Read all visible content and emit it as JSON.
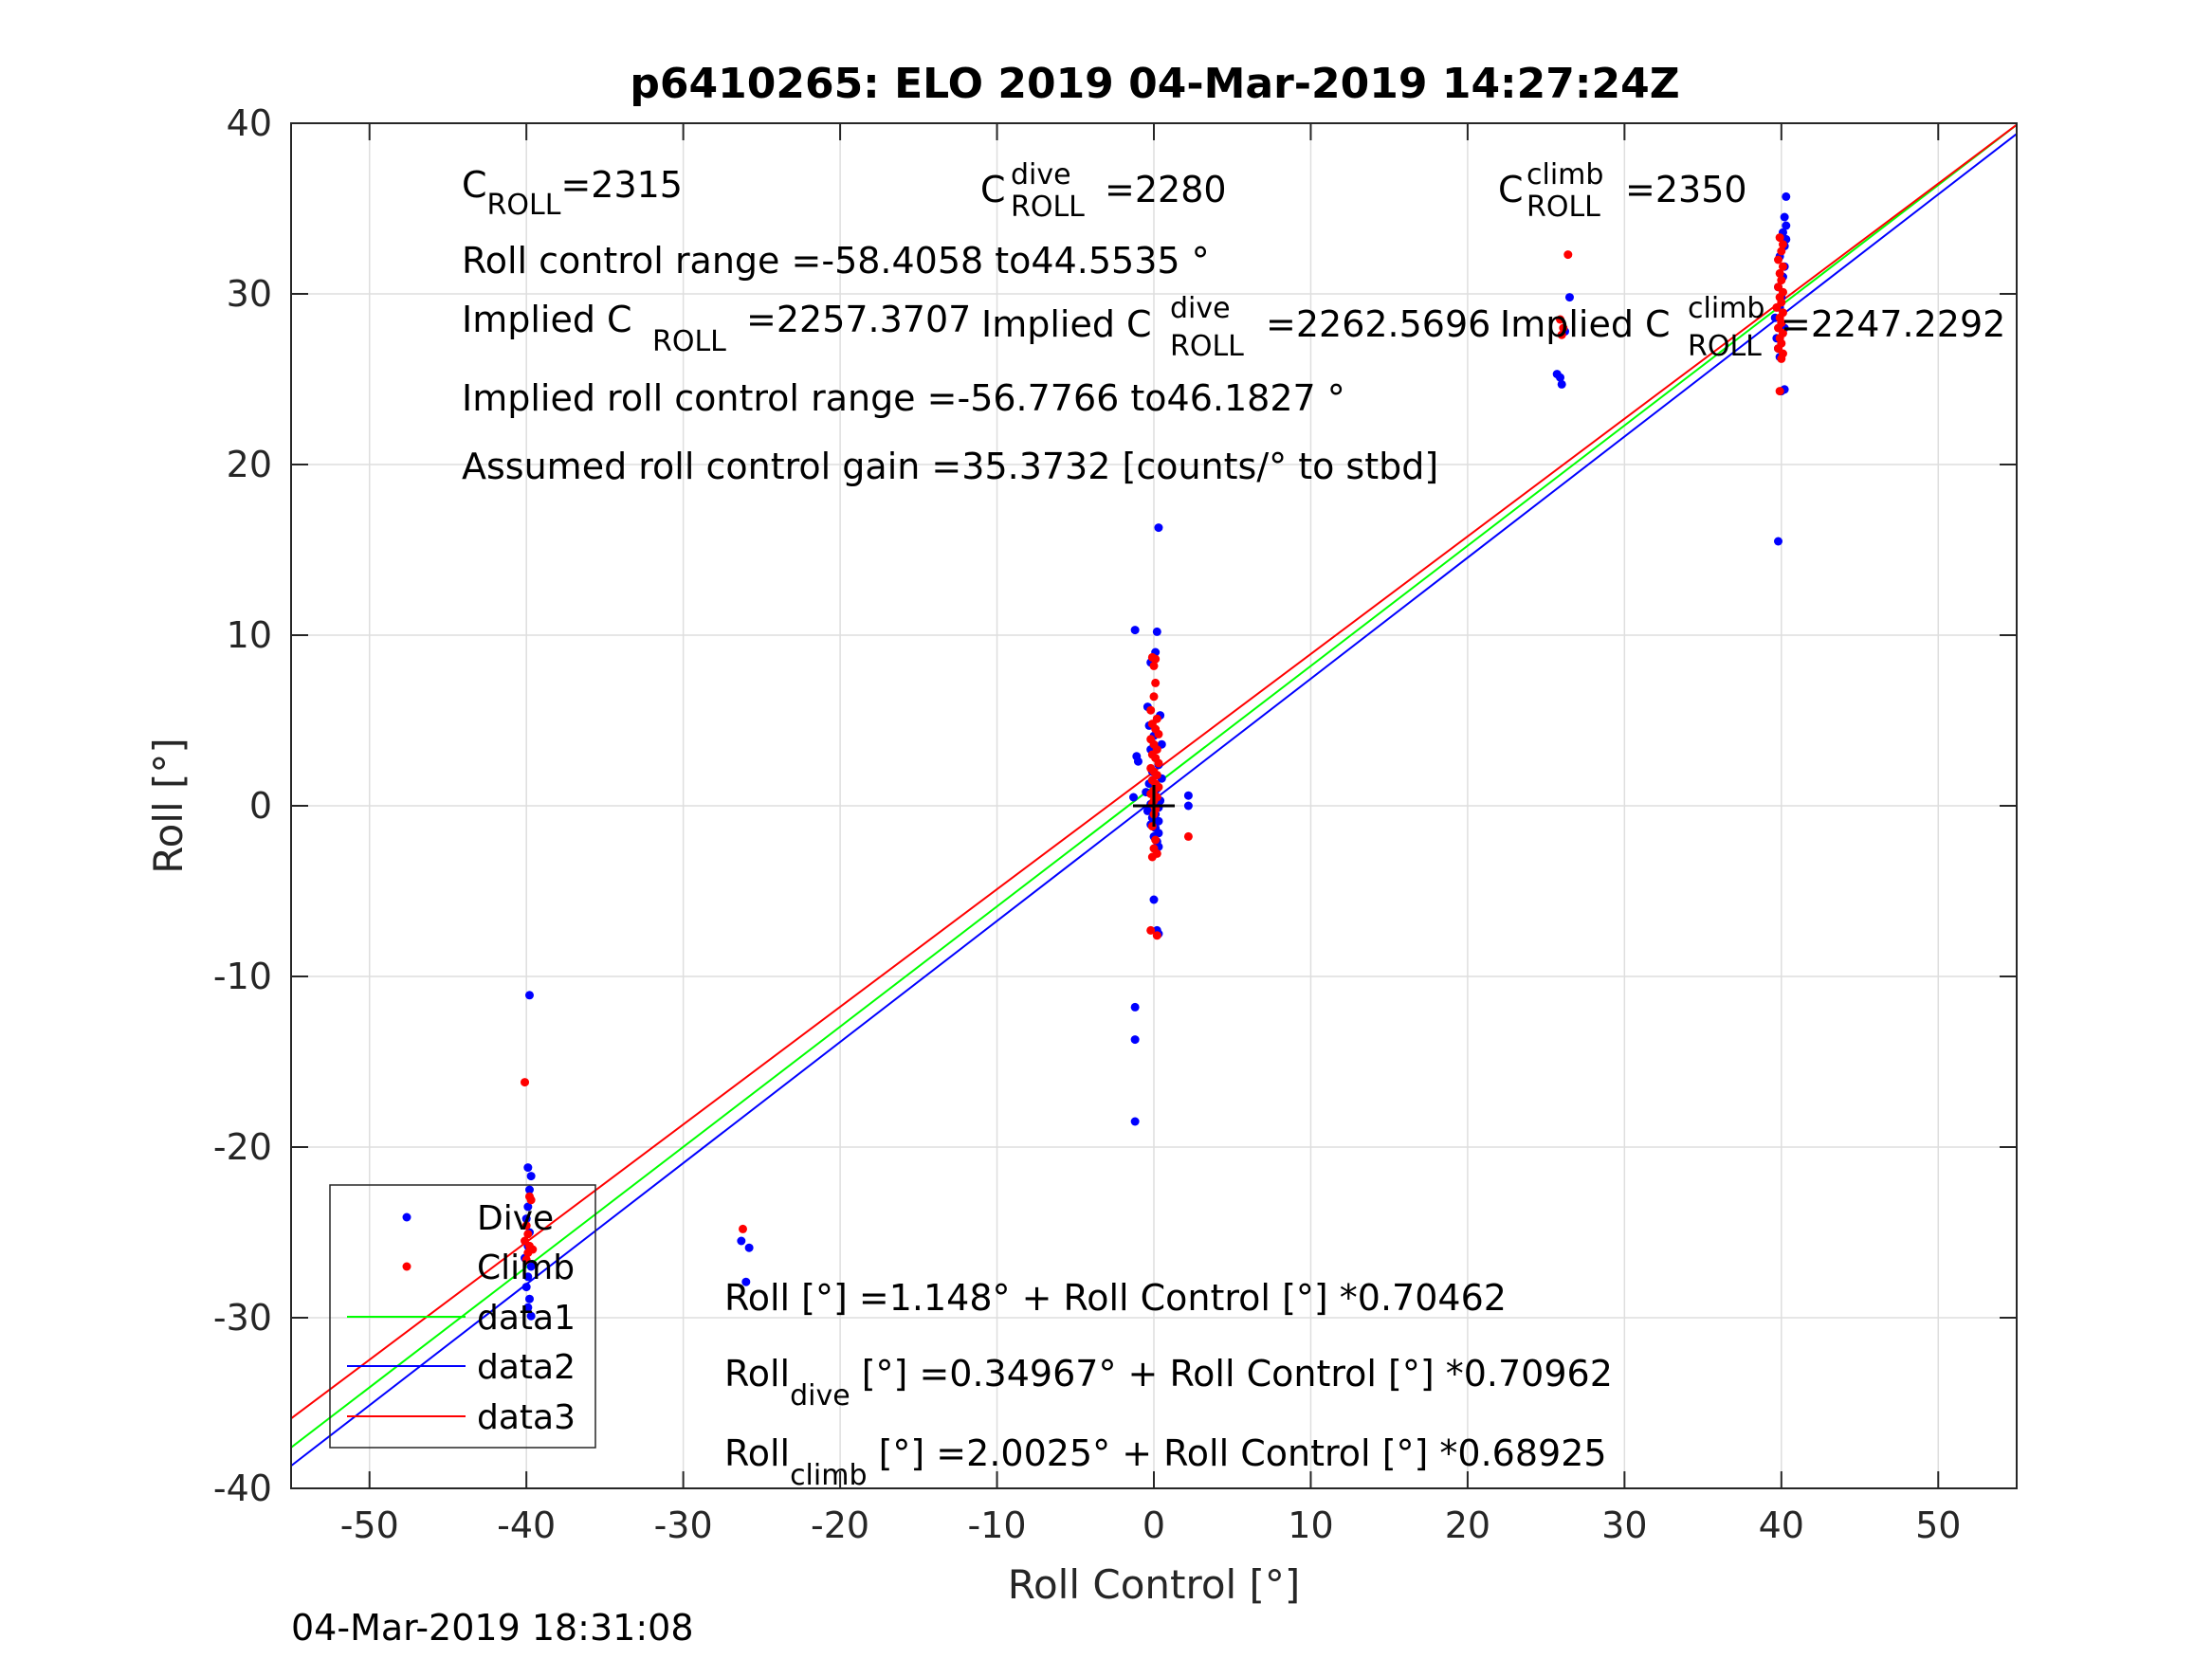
{
  "chart_data": {
    "type": "scatter",
    "title": "p6410265: ELO 2019 04-Mar-2019 14:27:24Z",
    "xlabel": "Roll Control [°]",
    "ylabel": "Roll [°]",
    "xlim": [
      -55,
      55
    ],
    "ylim": [
      -40,
      40
    ],
    "grid": true,
    "legend_position": "bottom-left",
    "xticks": [
      "-50",
      "-40",
      "-30",
      "-20",
      "-10",
      "0",
      "10",
      "20",
      "30",
      "40",
      "50"
    ],
    "yticks": [
      "-40",
      "-30",
      "-20",
      "-10",
      "0",
      "10",
      "20",
      "30",
      "40"
    ],
    "timestamp": "04-Mar-2019 18:31:08",
    "series": [
      {
        "name": "Dive",
        "kind": "points",
        "color": "#0000ff",
        "points": [
          [
            -39.8,
            -11.1
          ],
          [
            -39.9,
            -21.2
          ],
          [
            -39.7,
            -21.7
          ],
          [
            -39.8,
            -22.5
          ],
          [
            -39.9,
            -23.5
          ],
          [
            -40.0,
            -24.2
          ],
          [
            -39.8,
            -25.0
          ],
          [
            -39.9,
            -25.8
          ],
          [
            -40.1,
            -26.5
          ],
          [
            -39.7,
            -27.0
          ],
          [
            -39.9,
            -27.6
          ],
          [
            -40.0,
            -28.2
          ],
          [
            -39.8,
            -28.9
          ],
          [
            -39.9,
            -29.4
          ],
          [
            -39.7,
            -29.9
          ],
          [
            -26.3,
            -25.5
          ],
          [
            -25.8,
            -25.9
          ],
          [
            -26.0,
            -27.9
          ],
          [
            -1.2,
            10.3
          ],
          [
            0.2,
            10.2
          ],
          [
            0.3,
            16.3
          ],
          [
            0.1,
            9.0
          ],
          [
            -0.2,
            8.4
          ],
          [
            -0.4,
            5.8
          ],
          [
            0.4,
            5.3
          ],
          [
            -0.3,
            4.7
          ],
          [
            0.0,
            4.1
          ],
          [
            0.5,
            3.6
          ],
          [
            -0.2,
            3.3
          ],
          [
            -1.1,
            2.9
          ],
          [
            -1.0,
            2.6
          ],
          [
            0.3,
            2.4
          ],
          [
            -0.1,
            2.0
          ],
          [
            0.5,
            1.6
          ],
          [
            -0.3,
            1.3
          ],
          [
            0.2,
            1.0
          ],
          [
            -0.5,
            0.8
          ],
          [
            0.1,
            0.6
          ],
          [
            -1.3,
            0.5
          ],
          [
            0.4,
            0.3
          ],
          [
            -0.2,
            0.1
          ],
          [
            0.3,
            -0.1
          ],
          [
            -0.4,
            -0.3
          ],
          [
            0.1,
            -0.5
          ],
          [
            -0.1,
            -0.7
          ],
          [
            0.3,
            -0.9
          ],
          [
            -0.2,
            -1.1
          ],
          [
            0.1,
            -1.3
          ],
          [
            0.3,
            -1.6
          ],
          [
            0.0,
            -1.8
          ],
          [
            0.2,
            -2.1
          ],
          [
            0.3,
            -2.4
          ],
          [
            2.2,
            0.6
          ],
          [
            2.2,
            0.0
          ],
          [
            0.0,
            -5.5
          ],
          [
            0.2,
            -7.3
          ],
          [
            0.3,
            -7.5
          ],
          [
            -1.2,
            -11.8
          ],
          [
            -1.2,
            -13.7
          ],
          [
            -1.2,
            -18.5
          ],
          [
            25.7,
            25.3
          ],
          [
            25.9,
            25.1
          ],
          [
            26.0,
            24.7
          ],
          [
            26.5,
            29.8
          ],
          [
            26.2,
            27.8
          ],
          [
            40.3,
            35.7
          ],
          [
            40.2,
            34.5
          ],
          [
            40.3,
            34.0
          ],
          [
            40.1,
            33.6
          ],
          [
            40.3,
            33.2
          ],
          [
            40.2,
            32.8
          ],
          [
            39.9,
            32.2
          ],
          [
            40.2,
            31.6
          ],
          [
            40.1,
            31.0
          ],
          [
            39.8,
            30.4
          ],
          [
            40.0,
            29.8
          ],
          [
            39.9,
            29.2
          ],
          [
            39.6,
            28.6
          ],
          [
            40.2,
            28.0
          ],
          [
            39.7,
            27.4
          ],
          [
            39.8,
            26.8
          ],
          [
            39.9,
            26.3
          ],
          [
            40.2,
            24.4
          ],
          [
            40.0,
            24.3
          ],
          [
            39.8,
            15.5
          ]
        ]
      },
      {
        "name": "Climb",
        "kind": "points",
        "color": "#ff0000",
        "points": [
          [
            -40.1,
            -16.2
          ],
          [
            -39.8,
            -22.9
          ],
          [
            -39.7,
            -23.1
          ],
          [
            -40.0,
            -24.6
          ],
          [
            -39.9,
            -25.1
          ],
          [
            -40.1,
            -25.5
          ],
          [
            -39.8,
            -25.8
          ],
          [
            -39.6,
            -26.0
          ],
          [
            -39.9,
            -26.2
          ],
          [
            -40.0,
            -26.6
          ],
          [
            -26.2,
            -24.8
          ],
          [
            -0.1,
            8.7
          ],
          [
            0.1,
            8.6
          ],
          [
            0.0,
            8.2
          ],
          [
            0.1,
            7.2
          ],
          [
            0.0,
            6.4
          ],
          [
            -0.2,
            5.6
          ],
          [
            0.2,
            5.1
          ],
          [
            -0.1,
            4.8
          ],
          [
            0.1,
            4.5
          ],
          [
            0.3,
            4.2
          ],
          [
            -0.2,
            3.9
          ],
          [
            0.0,
            3.6
          ],
          [
            0.2,
            3.3
          ],
          [
            -0.1,
            3.0
          ],
          [
            0.1,
            2.8
          ],
          [
            0.3,
            2.5
          ],
          [
            -0.2,
            2.2
          ],
          [
            0.0,
            2.0
          ],
          [
            0.2,
            1.8
          ],
          [
            -0.1,
            1.5
          ],
          [
            0.1,
            1.3
          ],
          [
            0.3,
            1.1
          ],
          [
            0.0,
            0.9
          ],
          [
            -0.2,
            0.7
          ],
          [
            0.2,
            0.5
          ],
          [
            0.0,
            0.3
          ],
          [
            -0.1,
            0.1
          ],
          [
            0.1,
            -0.2
          ],
          [
            0.0,
            -0.5
          ],
          [
            -0.1,
            -1.2
          ],
          [
            0.1,
            -2.0
          ],
          [
            0.0,
            -2.5
          ],
          [
            0.2,
            -2.8
          ],
          [
            -0.1,
            -3.0
          ],
          [
            2.2,
            -1.8
          ],
          [
            -0.2,
            -7.3
          ],
          [
            0.2,
            -7.6
          ],
          [
            26.4,
            32.3
          ],
          [
            25.9,
            28.5
          ],
          [
            26.0,
            27.6
          ],
          [
            26.1,
            28.0
          ],
          [
            39.9,
            33.3
          ],
          [
            40.1,
            32.9
          ],
          [
            40.0,
            32.5
          ],
          [
            39.8,
            32.0
          ],
          [
            40.1,
            31.6
          ],
          [
            39.9,
            31.2
          ],
          [
            40.0,
            30.8
          ],
          [
            39.8,
            30.4
          ],
          [
            40.1,
            30.1
          ],
          [
            39.9,
            29.8
          ],
          [
            40.0,
            29.5
          ],
          [
            39.7,
            29.2
          ],
          [
            40.1,
            28.9
          ],
          [
            39.9,
            28.6
          ],
          [
            40.0,
            28.3
          ],
          [
            39.8,
            28.0
          ],
          [
            40.1,
            27.7
          ],
          [
            39.9,
            27.4
          ],
          [
            40.0,
            27.1
          ],
          [
            39.8,
            26.8
          ],
          [
            40.1,
            26.5
          ],
          [
            40.0,
            26.2
          ],
          [
            39.9,
            24.3
          ]
        ]
      },
      {
        "name": "data1",
        "kind": "line",
        "color": "#00ff00",
        "intercept": 1.148,
        "slope": 0.70462
      },
      {
        "name": "data2",
        "kind": "line",
        "color": "#0000ff",
        "intercept": 0.34967,
        "slope": 0.70962
      },
      {
        "name": "data3",
        "kind": "line",
        "color": "#ff0000",
        "intercept": 2.0025,
        "slope": 0.68925
      }
    ],
    "origin_marker": [
      0,
      0
    ],
    "annotations": {
      "c_roll": {
        "base": "C",
        "sub": "ROLL",
        "value": "=2315"
      },
      "c_roll_dive": {
        "base": "C",
        "sup": "dive",
        "sub": "ROLL",
        "value": "=2280"
      },
      "c_roll_climb": {
        "base": "C",
        "sup": "climb",
        "sub": "ROLL",
        "value": "=2350"
      },
      "roll_control_range": "Roll control range =-58.4058 to44.5535 °",
      "implied_c_roll": {
        "pre": "Implied C",
        "sub": "ROLL",
        "value": "=2257.3707"
      },
      "implied_c_roll_dive": {
        "pre": "Implied C",
        "sup": "dive",
        "sub": "ROLL",
        "value": "=2262.5696"
      },
      "implied_c_roll_climb": {
        "pre": "Implied C",
        "sup": "climb",
        "sub": "ROLL",
        "value": "=2247.2292"
      },
      "implied_range": "Implied roll control range =-56.7766 to46.1827 °",
      "assumed_gain": "Assumed roll control gain =35.3732 [counts/° to stbd]",
      "fit_all": "Roll [°] =1.148° + Roll Control [°] *0.70462",
      "fit_dive": {
        "pre": "Roll",
        "sub": "dive",
        "post": " [°] =0.34967° + Roll Control [°] *0.70962"
      },
      "fit_climb": {
        "pre": "Roll",
        "sub": "climb",
        "post": " [°] =2.0025° + Roll Control [°] *0.68925"
      }
    }
  }
}
